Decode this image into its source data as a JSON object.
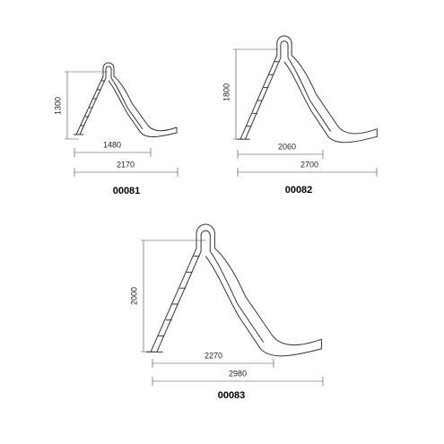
{
  "slides": [
    {
      "code": "00081",
      "height": "1300",
      "ladder_width": "1480",
      "total_width": "2170"
    },
    {
      "code": "00082",
      "height": "1800",
      "ladder_width": "2060",
      "total_width": "2700"
    },
    {
      "code": "00083",
      "height": "2000",
      "ladder_width": "2270",
      "total_width": "2980"
    }
  ]
}
